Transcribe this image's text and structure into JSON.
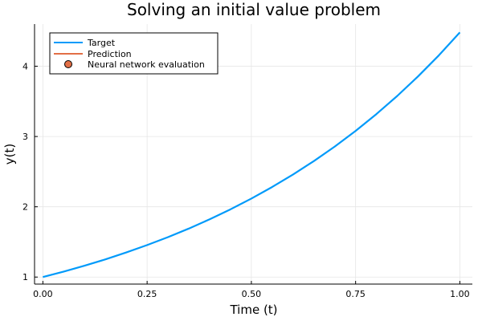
{
  "chart_data": {
    "type": "line",
    "title": "Solving an initial value problem",
    "xlabel": "Time (t)",
    "ylabel": "y(t)",
    "xlim": [
      -0.02,
      1.03
    ],
    "ylim": [
      0.9,
      4.6
    ],
    "xticks": [
      0.0,
      0.25,
      0.5,
      0.75,
      1.0
    ],
    "xtick_labels": [
      "0.00",
      "0.25",
      "0.50",
      "0.75",
      "1.00"
    ],
    "yticks": [
      1,
      2,
      3,
      4
    ],
    "ytick_labels": [
      "1",
      "2",
      "3",
      "4"
    ],
    "grid": true,
    "legend_position": "top-left",
    "series": [
      {
        "name": "Target",
        "kind": "line",
        "color": "#009AFA",
        "x": [
          0.0,
          0.05,
          0.1,
          0.15,
          0.2,
          0.25,
          0.3,
          0.35,
          0.4,
          0.45,
          0.5,
          0.55,
          0.6,
          0.65,
          0.7,
          0.75,
          0.8,
          0.85,
          0.9,
          0.95,
          1.0
        ],
        "y": [
          1.0,
          1.078,
          1.162,
          1.252,
          1.35,
          1.455,
          1.568,
          1.69,
          1.822,
          1.964,
          2.117,
          2.282,
          2.459,
          2.651,
          2.857,
          3.08,
          3.32,
          3.578,
          3.857,
          4.157,
          4.481
        ]
      },
      {
        "name": "Prediction",
        "kind": "line",
        "color": "#E26F46",
        "x": [],
        "y": []
      },
      {
        "name": "Neural network evaluation",
        "kind": "scatter",
        "color": "#E26F46",
        "x": [],
        "y": []
      }
    ]
  }
}
